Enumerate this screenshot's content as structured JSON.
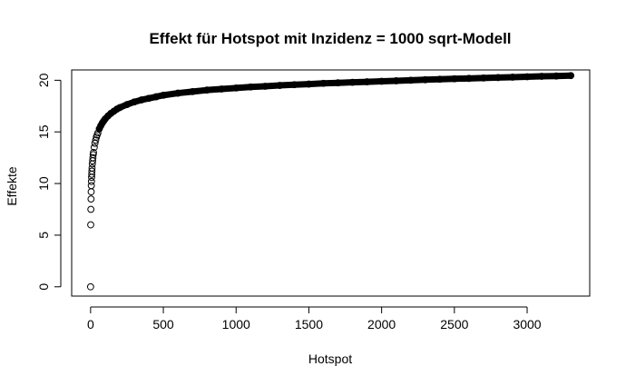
{
  "chart_data": {
    "type": "scatter",
    "title": "Effekt für Hotspot mit Inzidenz = 1000 sqrt-Modell",
    "xlabel": "Hotspot",
    "ylabel": "Effekte",
    "xlim": [
      -130,
      3430
    ],
    "ylim": [
      -0.9,
      21.0
    ],
    "xticks": [
      0,
      500,
      1000,
      1500,
      2000,
      2500,
      3000
    ],
    "yticks": [
      0,
      5,
      10,
      15,
      20
    ],
    "grid": false,
    "legend": "none",
    "point_style": "open-circle",
    "point_color": "#000000",
    "series": [
      {
        "x": [
          0,
          1,
          2,
          3,
          4,
          5,
          6,
          7,
          8,
          9,
          10,
          12,
          14,
          16,
          18,
          20,
          25,
          30,
          35,
          40,
          45,
          50,
          60,
          70,
          80,
          90,
          100,
          120,
          140,
          160,
          180,
          200,
          250,
          300,
          350,
          400,
          450,
          500,
          600,
          700,
          800,
          900,
          1000,
          1100,
          1200,
          1300,
          1400,
          1500,
          1600,
          1700,
          1800,
          1900,
          2000,
          2100,
          2200,
          2300,
          2400,
          2500,
          2600,
          2700,
          2800,
          2900,
          3000,
          3100,
          3200,
          3300
        ],
        "y": [
          0,
          6.0,
          7.5,
          8.5,
          9.2,
          9.8,
          10.2,
          10.6,
          10.9,
          11.2,
          11.5,
          11.9,
          12.2,
          12.5,
          12.8,
          13.0,
          13.5,
          13.9,
          14.2,
          14.5,
          14.7,
          14.9,
          15.3,
          15.6,
          15.85,
          16.05,
          16.25,
          16.55,
          16.8,
          17.0,
          17.2,
          17.35,
          17.65,
          17.9,
          18.1,
          18.25,
          18.4,
          18.55,
          18.75,
          18.9,
          19.05,
          19.15,
          19.25,
          19.35,
          19.42,
          19.5,
          19.57,
          19.63,
          19.7,
          19.75,
          19.8,
          19.85,
          19.9,
          19.95,
          20.0,
          20.05,
          20.1,
          20.14,
          20.18,
          20.22,
          20.26,
          20.3,
          20.34,
          20.38,
          20.41,
          20.45
        ]
      }
    ]
  }
}
